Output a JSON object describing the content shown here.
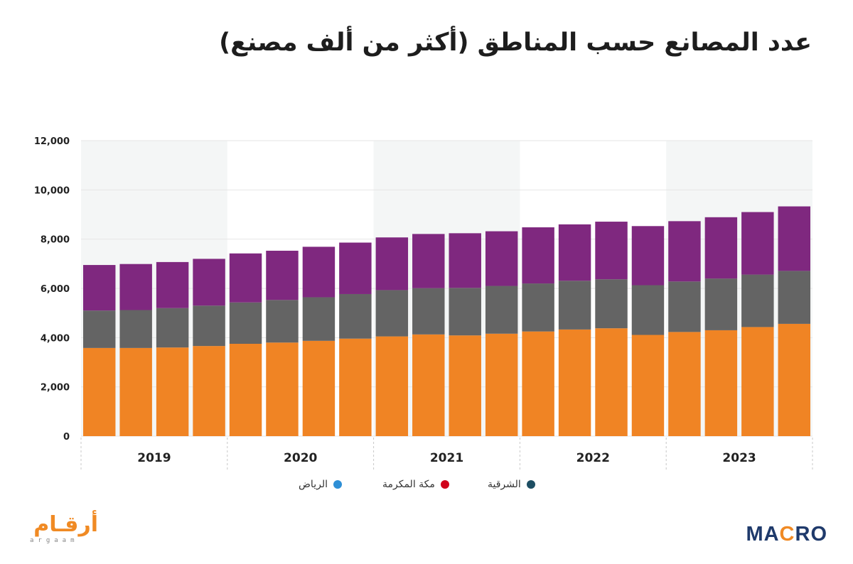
{
  "title": "عدد المصانع حسب المناطق (أكثر من ألف مصنع)",
  "legend": [
    {
      "label": "الرياض",
      "color": "#2e8fd6"
    },
    {
      "label": "مكة المكرمة",
      "color": "#d0021b"
    },
    {
      "label": "الشرقية",
      "color": "#1d4e63"
    }
  ],
  "logos": {
    "left_ar": "أرقـام",
    "left_en": "argaam",
    "right_pre": "MA",
    "right_accent": "C",
    "right_post": "RO"
  },
  "chart_data": {
    "type": "bar",
    "stacked": true,
    "years": [
      "2019",
      "2020",
      "2021",
      "2022",
      "2023"
    ],
    "bars_per_year": 4,
    "ylim": [
      0,
      12000
    ],
    "yticks": [
      0,
      2000,
      4000,
      6000,
      8000,
      10000,
      12000
    ],
    "ytick_labels": [
      "0",
      "2,000",
      "4,000",
      "6,000",
      "8,000",
      "10,000",
      "12,000"
    ],
    "series": [
      {
        "color": "#f08424",
        "values": [
          3580,
          3580,
          3600,
          3660,
          3750,
          3800,
          3870,
          3960,
          4050,
          4130,
          4090,
          4160,
          4250,
          4330,
          4380,
          4110,
          4230,
          4300,
          4430,
          4560
        ]
      },
      {
        "color": "#646464",
        "values": [
          1520,
          1540,
          1600,
          1640,
          1680,
          1730,
          1770,
          1810,
          1880,
          1880,
          1930,
          1940,
          1950,
          1980,
          1990,
          2020,
          2050,
          2100,
          2130,
          2150
        ]
      },
      {
        "color": "#7f287f",
        "values": [
          1850,
          1870,
          1870,
          1900,
          1990,
          2000,
          2050,
          2090,
          2140,
          2200,
          2220,
          2220,
          2280,
          2290,
          2340,
          2400,
          2450,
          2490,
          2540,
          2620
        ]
      }
    ],
    "grid": true,
    "legend_position": "bottom"
  }
}
